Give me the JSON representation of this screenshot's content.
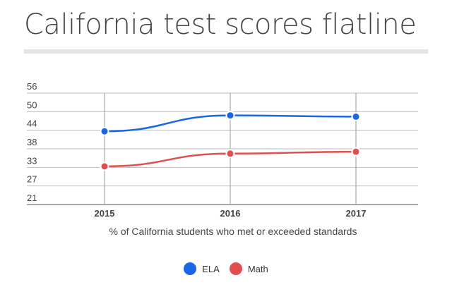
{
  "title": "California test scores flatline",
  "chart_data": {
    "type": "line",
    "title": "California test scores flatline",
    "xlabel": "% of California students who met or exceeded standards",
    "ylabel": "",
    "categories": [
      "2015",
      "2016",
      "2017"
    ],
    "yticks": [
      "21",
      "27",
      "33",
      "38",
      "44",
      "50",
      "56"
    ],
    "ylim": [
      21,
      56
    ],
    "grid": true,
    "legend_position": "bottom",
    "series": [
      {
        "name": "ELA",
        "values": [
          44,
          49,
          48.6
        ],
        "color": "#1a66e6"
      },
      {
        "name": "Math",
        "values": [
          33,
          37,
          37.6
        ],
        "color": "#e04f4f"
      }
    ]
  }
}
